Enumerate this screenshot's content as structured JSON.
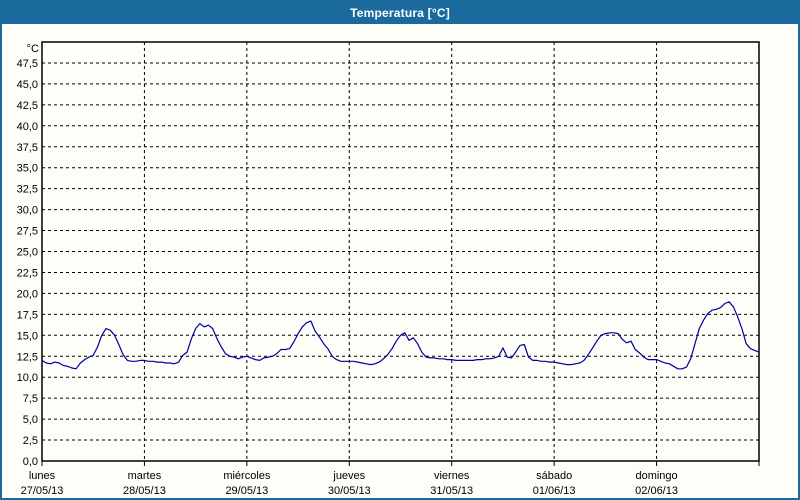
{
  "window": {
    "title": "Temperatura [°C]"
  },
  "colors": {
    "titlebar_bg": "#1b6a9e",
    "titlebar_text": "#ffffff",
    "window_bg": "#fcfef7",
    "window_border": "#1b6a9e",
    "plot_border": "#000000",
    "gridline": "#000000",
    "series_line": "#0000a0",
    "label_text": "#000000"
  },
  "chart_data": {
    "type": "line",
    "title": "Temperatura [°C]",
    "ylabel_unit": "°C",
    "ylim": [
      0,
      50
    ],
    "y_tick_step": 2.5,
    "y_tick_labels": [
      "0,0",
      "2,5",
      "5,0",
      "7,5",
      "10,0",
      "12,5",
      "15,0",
      "17,5",
      "20,0",
      "22,5",
      "25,0",
      "27,5",
      "30,0",
      "32,5",
      "35,0",
      "37,5",
      "40,0",
      "42,5",
      "45,0",
      "47,5"
    ],
    "grid": "dashed-black",
    "legend_position": "none",
    "sampling": "hourly",
    "days_shown": 7,
    "x_days": [
      {
        "name": "lunes",
        "date": "27/05/13"
      },
      {
        "name": "martes",
        "date": "28/05/13"
      },
      {
        "name": "miércoles",
        "date": "29/05/13"
      },
      {
        "name": "jueves",
        "date": "30/05/13"
      },
      {
        "name": "viernes",
        "date": "31/05/13"
      },
      {
        "name": "sábado",
        "date": "01/06/13"
      },
      {
        "name": "domingo",
        "date": "02/06/13"
      }
    ],
    "series": [
      {
        "name": "Temperatura",
        "color": "#0000a0",
        "values": [
          12.0,
          11.7,
          11.6,
          11.8,
          11.7,
          11.4,
          11.3,
          11.1,
          11.0,
          11.7,
          12.1,
          12.4,
          12.6,
          13.6,
          15.0,
          15.8,
          15.6,
          15.0,
          13.9,
          12.7,
          12.0,
          11.9,
          11.9,
          12.0,
          12.0,
          11.9,
          11.9,
          11.8,
          11.8,
          11.7,
          11.7,
          11.6,
          11.8,
          12.6,
          13.0,
          14.6,
          15.8,
          16.4,
          16.0,
          16.2,
          15.8,
          14.6,
          13.6,
          12.8,
          12.5,
          12.4,
          12.2,
          12.4,
          12.5,
          12.3,
          12.1,
          12.0,
          12.3,
          12.4,
          12.5,
          12.8,
          13.3,
          13.3,
          13.4,
          14.2,
          15.2,
          16.0,
          16.5,
          16.7,
          15.5,
          14.8,
          14.0,
          13.4,
          12.5,
          12.1,
          11.9,
          11.9,
          11.9,
          11.9,
          11.8,
          11.7,
          11.6,
          11.5,
          11.6,
          11.8,
          12.2,
          12.7,
          13.4,
          14.3,
          15.0,
          15.3,
          14.4,
          14.7,
          14.0,
          13.0,
          12.4,
          12.3,
          12.3,
          12.2,
          12.2,
          12.1,
          12.1,
          12.0,
          12.0,
          12.0,
          12.0,
          12.0,
          12.1,
          12.1,
          12.2,
          12.2,
          12.3,
          12.5,
          13.5,
          12.4,
          12.3,
          13.0,
          13.8,
          13.9,
          12.4,
          12.0,
          12.0,
          11.9,
          11.9,
          11.8,
          11.8,
          11.7,
          11.6,
          11.5,
          11.5,
          11.6,
          11.7,
          12.0,
          12.7,
          13.5,
          14.3,
          15.0,
          15.2,
          15.3,
          15.3,
          15.2,
          14.5,
          14.1,
          14.3,
          13.3,
          12.9,
          12.4,
          12.1,
          12.1,
          12.1,
          11.9,
          11.7,
          11.6,
          11.3,
          11.0,
          11.0,
          11.2,
          12.2,
          14.0,
          15.8,
          16.8,
          17.6,
          18.0,
          18.1,
          18.3,
          18.8,
          19.0,
          18.4,
          17.2,
          15.8,
          14.0,
          13.4,
          13.2,
          13.0
        ]
      }
    ]
  }
}
